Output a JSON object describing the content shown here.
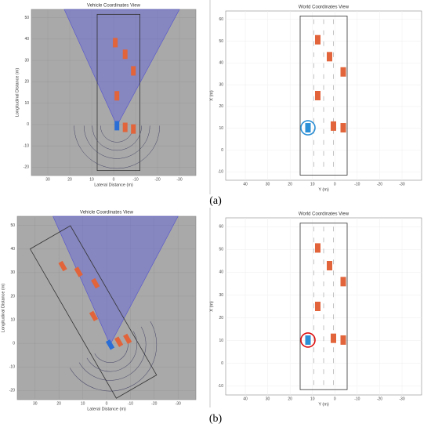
{
  "panels": [
    {
      "title": "Vehicle Coordinates View",
      "xlabel": "Lateral Distance (m)",
      "ylabel": "Longitudinal Distance (m)",
      "xticks": [
        "30",
        "20",
        "10",
        "0",
        "-10",
        "-20",
        "-30"
      ],
      "yticks": [
        "50",
        "40",
        "30",
        "20",
        "10",
        "0",
        "-10",
        "-20"
      ]
    },
    {
      "title": "World Coordinates View",
      "xlabel": "Y (m)",
      "ylabel": "X (m)",
      "xticks": [
        "40",
        "30",
        "20",
        "10",
        "0",
        "-10",
        "-20",
        "-30"
      ],
      "yticks": [
        "60",
        "50",
        "40",
        "30",
        "20",
        "10",
        "0",
        "-10"
      ]
    },
    {
      "title": "Vehicle Coordinates View",
      "xlabel": "Lateral Distance (m)",
      "ylabel": "Longitudinal Distance (m)",
      "xticks": [
        "30",
        "20",
        "10",
        "0",
        "-10",
        "-20",
        "-30"
      ],
      "yticks": [
        "50",
        "40",
        "30",
        "20",
        "10",
        "0",
        "-10",
        "-20"
      ]
    },
    {
      "title": "World Coordinates View",
      "xlabel": "Y (m)",
      "ylabel": "X (m)",
      "xticks": [
        "40",
        "30",
        "20",
        "10",
        "0",
        "-10",
        "-20",
        "-30"
      ],
      "yticks": [
        "60",
        "50",
        "40",
        "30",
        "20",
        "10",
        "0",
        "-10"
      ]
    }
  ],
  "captions": [
    "(a)",
    "(b)"
  ]
}
